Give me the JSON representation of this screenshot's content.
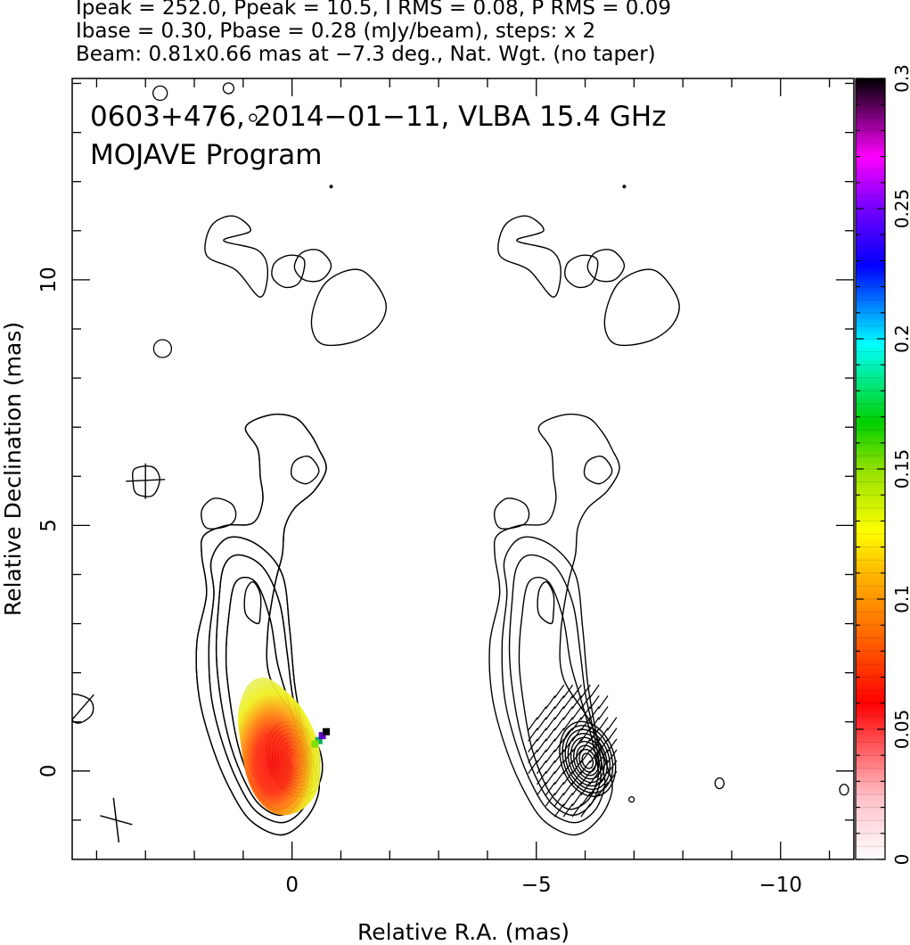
{
  "header": {
    "line1": "Ipeak = 252.0, Ppeak = 10.5, I RMS = 0.08, P RMS = 0.09",
    "line2": "Ibase = 0.30, Pbase = 0.28 (mJy/beam), steps: x 2",
    "line3": "Beam: 0.81x0.66 mas at −7.3 deg., Nat. Wgt. (no taper)"
  },
  "annotation": {
    "line1": "0603+476, 2014−01−11, VLBA 15.4 GHz",
    "line2": "MOJAVE Program"
  },
  "colors": {
    "contour": "#000000",
    "colorbar": [
      "#ffffff",
      "#ffc0c8",
      "#ff0000",
      "#ff8000",
      "#ffff00",
      "#00d000",
      "#00ffff",
      "#0000ff",
      "#ff00ff",
      "#000000"
    ]
  },
  "chart_data": {
    "type": "contour",
    "xlabel": "Relative R.A. (mas)",
    "ylabel": "Relative Declination (mas)",
    "xlim": [
      4.5,
      -11.5
    ],
    "ylim": [
      -1.8,
      14.1
    ],
    "x_ticks": [
      {
        "value": 0,
        "label": "0"
      },
      {
        "value": -5,
        "label": "−5"
      },
      {
        "value": -10,
        "label": "−10"
      }
    ],
    "y_ticks": [
      {
        "value": 0,
        "label": "0"
      },
      {
        "value": 5,
        "label": "5"
      },
      {
        "value": 10,
        "label": "10"
      }
    ],
    "x_minor_step": 1,
    "y_minor_step": 1,
    "colorbar": {
      "range": [
        0,
        0.3
      ],
      "ticks": [
        {
          "value": 0,
          "label": "0"
        },
        {
          "value": 0.05,
          "label": "0.05"
        },
        {
          "value": 0.1,
          "label": "0.1"
        },
        {
          "value": 0.15,
          "label": "0.15"
        },
        {
          "value": 0.2,
          "label": "0.2"
        },
        {
          "value": 0.25,
          "label": "0.25"
        },
        {
          "value": 0.3,
          "label": "0.3"
        }
      ]
    },
    "panels": [
      {
        "name": "total-intensity-with-fractional-polarization",
        "ra_offset": 0
      },
      {
        "name": "polarization-vectors",
        "ra_offset": -6
      }
    ],
    "contour_levels_mJy_per_beam": [
      0.3,
      0.6,
      1.2,
      2.4,
      4.8,
      9.6,
      19.2,
      38.4,
      76.8,
      153.6
    ],
    "peak_position": [
      0.0,
      0.2
    ],
    "beam": {
      "major": 0.81,
      "minor": 0.66,
      "pa": -7.3
    }
  }
}
